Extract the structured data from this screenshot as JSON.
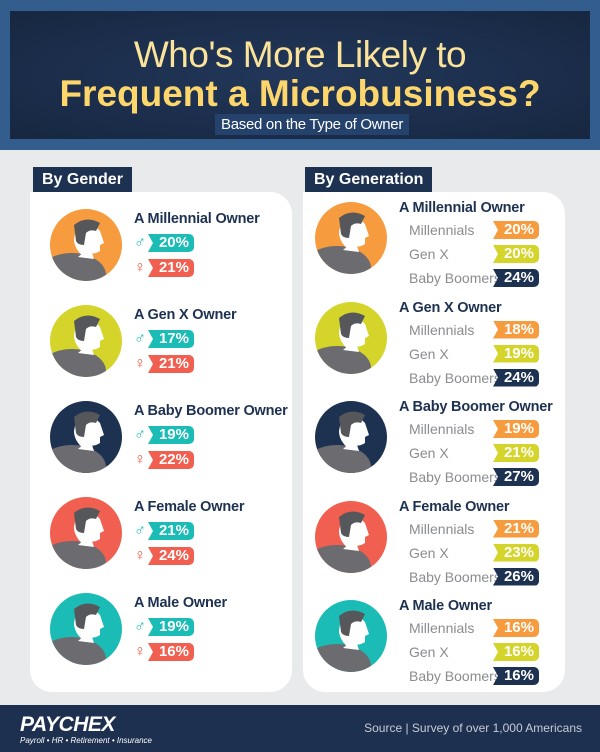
{
  "header": {
    "title_line1": "Who's More Likely to",
    "title_line2": "Frequent a Microbusiness?",
    "subtitle": "Based on the Type of Owner"
  },
  "colors": {
    "male": "#1bbcb5",
    "female": "#f05f50",
    "millennials": "#f79b3f",
    "genx": "#d4d42a",
    "boomers": "#1d3150"
  },
  "gender": {
    "label": "By Gender",
    "rows": [
      {
        "title": "A Millennial Owner",
        "male": "20%",
        "female": "21%",
        "avatar_color": "#f79b3f"
      },
      {
        "title": "A Gen X Owner",
        "male": "17%",
        "female": "21%",
        "avatar_color": "#d4d42a"
      },
      {
        "title": "A Baby Boomer Owner",
        "male": "19%",
        "female": "22%",
        "avatar_color": "#1d3150"
      },
      {
        "title": "A Female Owner",
        "male": "21%",
        "female": "24%",
        "avatar_color": "#f05f50"
      },
      {
        "title": "A Male Owner",
        "male": "19%",
        "female": "16%",
        "avatar_color": "#1bbcb5"
      }
    ]
  },
  "generation": {
    "label": "By Generation",
    "categories": [
      "Millennials",
      "Gen X",
      "Baby Boomers"
    ],
    "rows": [
      {
        "title": "A Millennial Owner",
        "values": [
          "20%",
          "20%",
          "24%"
        ],
        "avatar_color": "#f79b3f"
      },
      {
        "title": "A Gen X Owner",
        "values": [
          "18%",
          "19%",
          "24%"
        ],
        "avatar_color": "#d4d42a"
      },
      {
        "title": "A Baby Boomer Owner",
        "values": [
          "19%",
          "21%",
          "27%"
        ],
        "avatar_color": "#1d3150"
      },
      {
        "title": "A Female Owner",
        "values": [
          "21%",
          "23%",
          "26%"
        ],
        "avatar_color": "#f05f50"
      },
      {
        "title": "A Male Owner",
        "values": [
          "16%",
          "16%",
          "16%"
        ],
        "avatar_color": "#1bbcb5"
      }
    ]
  },
  "footer": {
    "logo": "PAYCHEX",
    "tagline": "Payroll • HR • Retirement • Insurance",
    "source": "Source | Survey of over 1,000 Americans"
  }
}
